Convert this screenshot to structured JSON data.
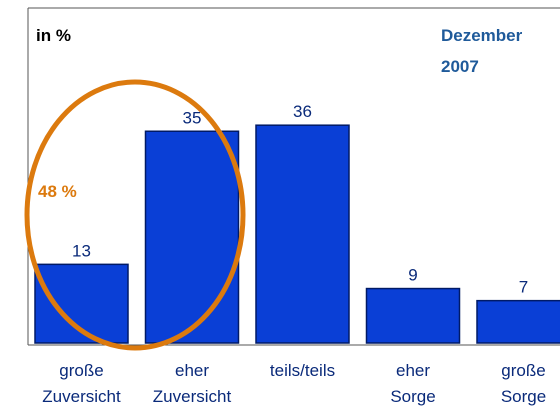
{
  "chart_data": {
    "type": "bar",
    "title": "Dezember 2007",
    "unit_label": "in %",
    "annotation": "48 %",
    "categories": [
      "große Zuversicht",
      "eher Zuversicht",
      "teils/teils",
      "eher Sorge",
      "große Sorge"
    ],
    "values": [
      13,
      35,
      36,
      9,
      7
    ],
    "color": "#0a3fd6"
  }
}
